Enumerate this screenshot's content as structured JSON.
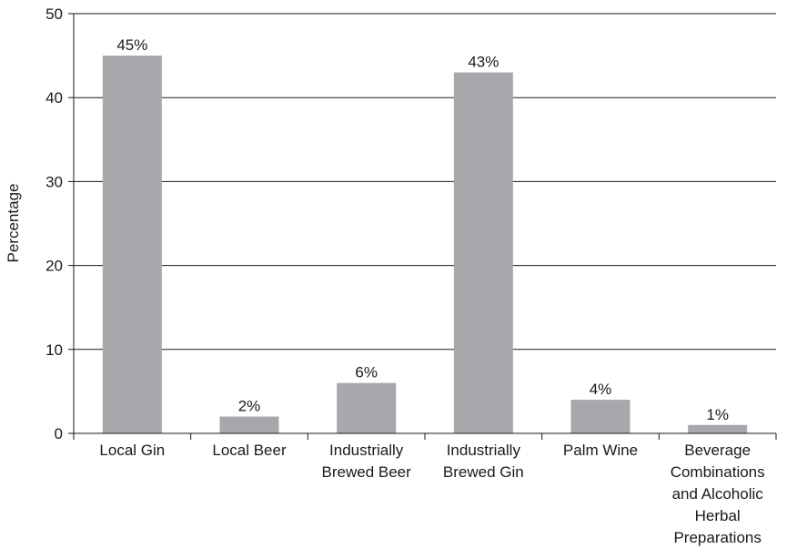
{
  "chart_data": {
    "type": "bar",
    "title": "",
    "xlabel": "",
    "ylabel": "Percentage",
    "ylim": [
      0,
      50
    ],
    "yticks": [
      "0",
      "10",
      "20",
      "30",
      "40",
      "50"
    ],
    "grid": true,
    "legend": "none",
    "categories": [
      [
        "Local Gin"
      ],
      [
        "Local Beer"
      ],
      [
        "Industrially",
        "Brewed Beer"
      ],
      [
        "Industrially",
        "Brewed Gin"
      ],
      [
        "Palm Wine"
      ],
      [
        "Beverage",
        "Combinations",
        "and Alcoholic",
        "Herbal",
        "Preparations"
      ]
    ],
    "values": [
      45,
      2,
      6,
      43,
      4,
      1
    ],
    "value_labels": [
      "45%",
      "2%",
      "6%",
      "43%",
      "4%",
      "1%"
    ],
    "bar_color": "#a7a8ab",
    "axis_color": "#1a1a1a"
  }
}
